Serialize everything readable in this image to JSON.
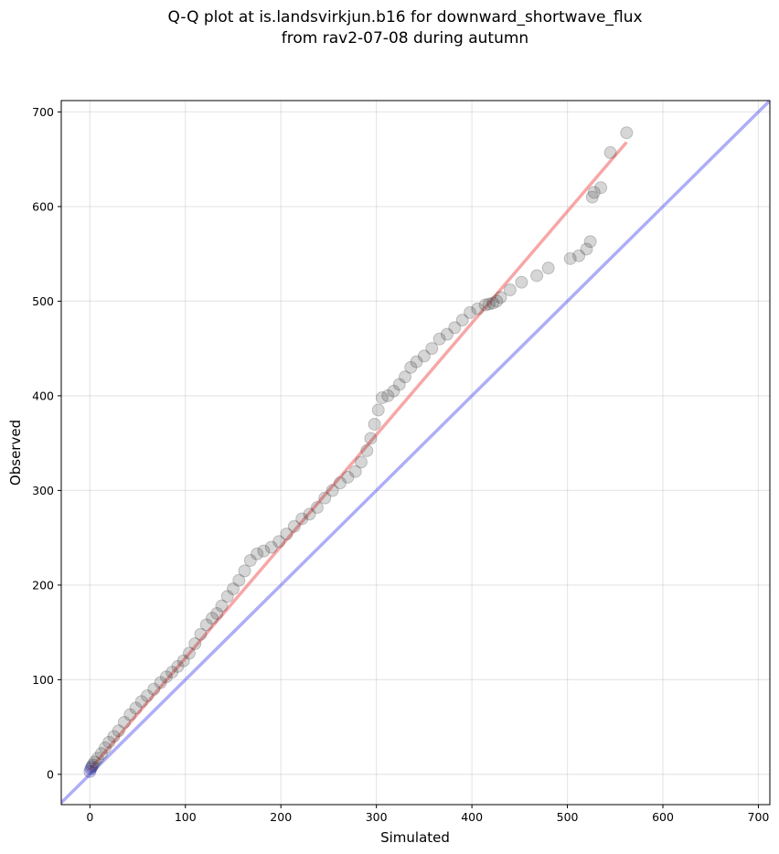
{
  "chart_data": {
    "type": "scatter",
    "title_lines": [
      "Q-Q plot at is.landsvirkjun.b16 for downward_shortwave_flux",
      "from rav2-07-08 during autumn"
    ],
    "xlabel": "Simulated",
    "ylabel": "Observed",
    "xlim": [
      -30,
      712
    ],
    "ylim": [
      -32,
      712
    ],
    "xticks": [
      0,
      100,
      200,
      300,
      400,
      500,
      600,
      700
    ],
    "yticks": [
      0,
      100,
      200,
      300,
      400,
      500,
      600,
      700
    ],
    "grid": true,
    "colors": {
      "points": "#333333",
      "fit_line": "#f26d6d",
      "identity_line": "#6b6bf0",
      "low_points": "#0a0a80"
    },
    "quantiles": {
      "x": [
        0,
        1,
        2,
        3,
        5,
        8,
        12,
        16,
        20,
        25,
        30,
        36,
        42,
        48,
        54,
        60,
        67,
        74,
        80,
        86,
        92,
        98,
        104,
        110,
        116,
        122,
        128,
        133,
        138,
        144,
        150,
        156,
        162,
        168,
        175,
        182,
        190,
        198,
        206,
        214,
        222,
        230,
        238,
        246,
        254,
        262,
        270,
        278,
        284,
        290,
        294,
        298,
        302,
        306,
        312,
        318,
        324,
        330,
        336,
        342,
        350,
        358,
        366,
        374,
        382,
        390,
        398,
        406,
        414,
        418,
        422,
        426,
        430,
        440,
        452,
        468,
        480,
        503,
        512,
        520,
        524,
        526,
        528,
        535,
        545,
        562
      ],
      "y": [
        3,
        6,
        8,
        10,
        13,
        17,
        22,
        28,
        34,
        40,
        46,
        55,
        63,
        70,
        77,
        83,
        90,
        97,
        103,
        108,
        114,
        120,
        128,
        138,
        148,
        158,
        165,
        170,
        178,
        188,
        196,
        205,
        215,
        226,
        233,
        236,
        240,
        246,
        254,
        262,
        270,
        275,
        282,
        292,
        300,
        308,
        314,
        320,
        330,
        342,
        355,
        370,
        385,
        398,
        400,
        405,
        412,
        420,
        430,
        436,
        442,
        450,
        460,
        465,
        472,
        480,
        488,
        492,
        496,
        497,
        498,
        500,
        504,
        512,
        520,
        527,
        535,
        545,
        548,
        555,
        563,
        610,
        615,
        620,
        657,
        678
      ]
    },
    "fit_line": {
      "x": [
        0,
        562
      ],
      "y": [
        5,
        668
      ]
    },
    "identity_line": {
      "x": [
        -30,
        712
      ],
      "y": [
        -30,
        712
      ]
    }
  }
}
